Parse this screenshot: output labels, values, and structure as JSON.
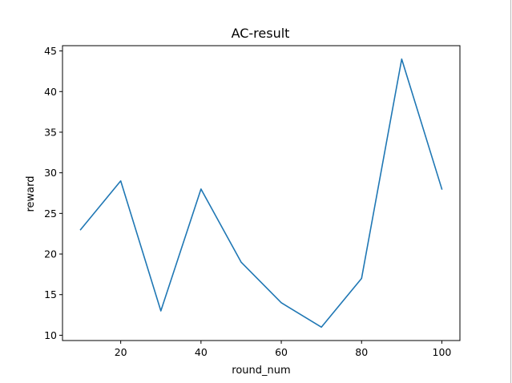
{
  "chart_data": {
    "type": "line",
    "title": "AC-result",
    "xlabel": "round_num",
    "ylabel": "reward",
    "xlim": [
      5.5,
      104.5
    ],
    "ylim": [
      9.35,
      45.65
    ],
    "xticks": [
      20,
      40,
      60,
      80,
      100
    ],
    "yticks": [
      10,
      15,
      20,
      25,
      30,
      35,
      40,
      45
    ],
    "grid": false,
    "series": [
      {
        "color": "#1f77b4",
        "x": [
          10,
          20,
          30,
          40,
          50,
          60,
          70,
          80,
          90,
          100
        ],
        "y": [
          23,
          29,
          13,
          28,
          19,
          14,
          11,
          17,
          44,
          28
        ]
      }
    ]
  }
}
